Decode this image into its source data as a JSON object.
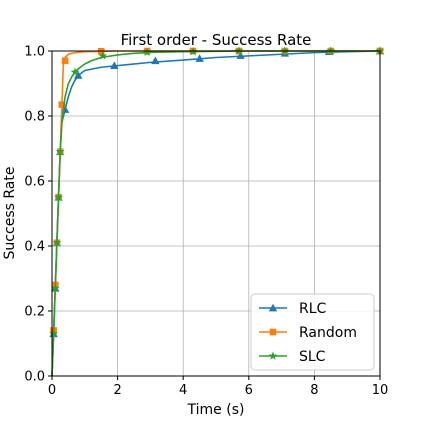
{
  "chart_data": {
    "type": "line",
    "title": "First order - Success Rate",
    "xlabel": "Time (s)",
    "ylabel": "Success Rate",
    "xlim": [
      0,
      10
    ],
    "ylim": [
      0,
      1.0
    ],
    "xticks": [
      0,
      2,
      4,
      6,
      8,
      10
    ],
    "xtick_labels": [
      "0",
      "2",
      "4",
      "6",
      "8",
      "10"
    ],
    "yticks": [
      0,
      0.2,
      0.4,
      0.6,
      0.8,
      1.0
    ],
    "ytick_labels": [
      "0.0",
      "0.2",
      "0.4",
      "0.6",
      "0.8",
      "1.0"
    ],
    "grid": true,
    "legend_position": "lower-right",
    "series": [
      {
        "name": "RLC",
        "color": "#1f77b4",
        "marker": "triangle",
        "x": [
          0,
          0.05,
          0.1,
          0.15,
          0.2,
          0.25,
          0.3,
          0.4,
          0.5,
          0.6,
          0.7,
          0.8,
          1.0,
          1.5,
          2.0,
          3.0,
          4.0,
          5.0,
          6.0,
          7.0,
          8.0,
          9.0,
          10.0
        ],
        "y": [
          0,
          0.13,
          0.27,
          0.42,
          0.56,
          0.69,
          0.78,
          0.82,
          0.86,
          0.89,
          0.91,
          0.925,
          0.94,
          0.95,
          0.955,
          0.965,
          0.972,
          0.98,
          0.985,
          0.99,
          0.995,
          0.998,
          1.0
        ],
        "marker_x": [
          0.05,
          0.1,
          0.15,
          0.2,
          0.25,
          0.4,
          0.8,
          1.9,
          3.15,
          4.5,
          5.75,
          7.1,
          8.45,
          10.0
        ],
        "marker_y": [
          0.13,
          0.27,
          0.41,
          0.55,
          0.69,
          0.82,
          0.925,
          0.955,
          0.97,
          0.977,
          0.986,
          0.993,
          0.998,
          1.0
        ]
      },
      {
        "name": "Random",
        "color": "#ff7f0e",
        "marker": "square",
        "x": [
          0,
          0.05,
          0.1,
          0.15,
          0.2,
          0.25,
          0.3,
          0.35,
          0.4,
          0.5,
          0.6,
          0.8,
          1.0,
          1.5,
          2.0,
          3.0,
          4.0,
          5.0,
          6.0,
          7.0,
          8.0,
          9.0,
          10.0
        ],
        "y": [
          0,
          0.14,
          0.28,
          0.41,
          0.55,
          0.69,
          0.83,
          0.97,
          0.98,
          0.99,
          0.993,
          0.996,
          0.998,
          0.999,
          1.0,
          1.0,
          1.0,
          1.0,
          1.0,
          1.0,
          1.0,
          1.0,
          1.0
        ],
        "marker_x": [
          0.05,
          0.1,
          0.15,
          0.2,
          0.25,
          0.3,
          0.4,
          1.5,
          2.9,
          4.3,
          5.7,
          7.1,
          8.5,
          10.0
        ],
        "marker_y": [
          0.14,
          0.28,
          0.41,
          0.55,
          0.69,
          0.835,
          0.97,
          0.999,
          1.0,
          1.0,
          1.0,
          1.0,
          1.0,
          1.0
        ]
      },
      {
        "name": "SLC",
        "color": "#2ca02c",
        "marker": "star",
        "x": [
          0,
          0.05,
          0.1,
          0.15,
          0.2,
          0.25,
          0.3,
          0.4,
          0.5,
          0.6,
          0.7,
          0.8,
          1.0,
          1.2,
          1.5,
          2.0,
          2.5,
          3.0,
          4.0,
          5.0,
          6.0,
          7.0,
          8.0,
          9.0,
          10.0
        ],
        "y": [
          0,
          0.13,
          0.27,
          0.41,
          0.55,
          0.69,
          0.78,
          0.86,
          0.9,
          0.92,
          0.935,
          0.945,
          0.96,
          0.97,
          0.98,
          0.988,
          0.993,
          0.996,
          0.998,
          0.999,
          1.0,
          1.0,
          1.0,
          1.0,
          1.0
        ],
        "marker_x": [
          0.05,
          0.1,
          0.15,
          0.2,
          0.25,
          0.7,
          1.55,
          2.9,
          4.3,
          5.7,
          7.1,
          8.5,
          10.0
        ],
        "marker_y": [
          0.13,
          0.27,
          0.41,
          0.55,
          0.69,
          0.935,
          0.985,
          0.996,
          0.998,
          1.0,
          1.0,
          1.0,
          1.0
        ]
      }
    ]
  }
}
